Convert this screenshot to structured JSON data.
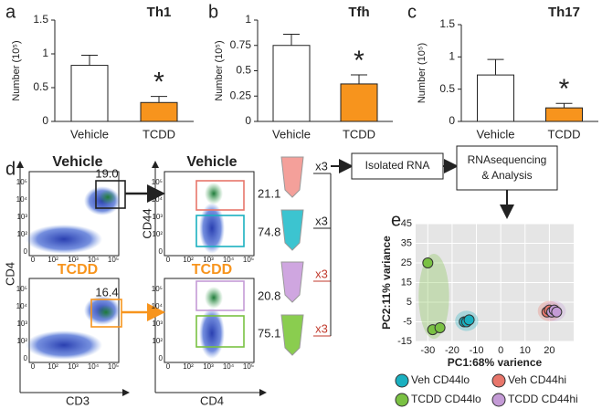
{
  "chart_data": [
    {
      "type": "bar",
      "title": "Th1",
      "y_label": "Number (10⁵)",
      "categories": [
        "Vehicle",
        "TCDD"
      ],
      "values": [
        0.83,
        0.28
      ],
      "errors": [
        0.15,
        0.09
      ],
      "colors": [
        "#ffffff",
        "#f7941d"
      ],
      "annotation": "*",
      "ylim": [
        0,
        1.5
      ],
      "yticks": [
        0,
        0.5,
        1,
        1.5
      ]
    },
    {
      "type": "bar",
      "title": "Tfh",
      "y_label": "Number (10⁵)",
      "categories": [
        "Vehicle",
        "TCDD"
      ],
      "values": [
        0.75,
        0.37
      ],
      "errors": [
        0.11,
        0.09
      ],
      "colors": [
        "#ffffff",
        "#f7941d"
      ],
      "annotation": "*",
      "ylim": [
        0,
        1
      ],
      "yticks": [
        0,
        0.25,
        0.5,
        0.75,
        1
      ]
    },
    {
      "type": "bar",
      "title": "Th17",
      "y_label": "Number (10⁵)",
      "categories": [
        "Vehicle",
        "TCDD"
      ],
      "values": [
        0.72,
        0.21
      ],
      "errors": [
        0.24,
        0.07
      ],
      "colors": [
        "#ffffff",
        "#f7941d"
      ],
      "annotation": "*",
      "ylim": [
        0,
        1.5
      ],
      "yticks": [
        0,
        0.5,
        1,
        1.5
      ]
    },
    {
      "type": "scatter",
      "x_label": "PC1:68% varience",
      "y_label": "PC2:11% variance",
      "series": [
        {
          "name": "Veh CD44lo",
          "color": "#1ab0c0",
          "x": [
            -15,
            -14,
            -13
          ],
          "values": [
            -5,
            -5,
            -4
          ]
        },
        {
          "name": "Veh CD44hi",
          "color": "#e8766b",
          "x": [
            19,
            20,
            21
          ],
          "values": [
            0,
            1,
            0
          ]
        },
        {
          "name": "TCDD CD44lo",
          "color": "#7ac143",
          "x": [
            -30,
            -28,
            -25
          ],
          "values": [
            25,
            -9,
            -8
          ]
        },
        {
          "name": "TCDD CD44hi",
          "color": "#c49bd6",
          "x": [
            21,
            22,
            23
          ],
          "values": [
            0,
            1,
            0
          ]
        }
      ],
      "xlim": [
        -35,
        30
      ],
      "xticks": [
        -30,
        -20,
        -10,
        0,
        10,
        20
      ],
      "ylim": [
        -15,
        45
      ],
      "yticks": [
        -15,
        -5,
        5,
        15,
        25,
        35,
        45
      ],
      "grid": true
    }
  ],
  "panels": [
    "a",
    "b",
    "c",
    "d",
    "e"
  ],
  "diagram": {
    "vehicle": "Vehicle",
    "tcdd": "TCDD",
    "gates": [
      "19.0",
      "16.4",
      "21.1",
      "74.8",
      "20.8",
      "75.1"
    ],
    "axis_left_y": "CD4",
    "axis_left_x": "CD3",
    "axis_mid_y": "CD44",
    "axis_mid_x": "CD4",
    "log_ticks": [
      "0",
      "10²",
      "10³",
      "10⁴",
      "10⁵"
    ],
    "replicates": [
      "x3",
      "x3",
      "x3",
      "x3"
    ],
    "isolated": "Isolated RNA",
    "sequencing": [
      "RNAsequencing",
      "& Analysis"
    ]
  }
}
